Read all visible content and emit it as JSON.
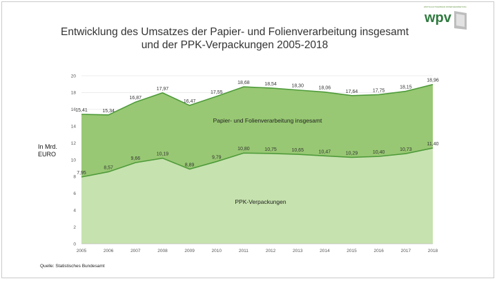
{
  "logo": {
    "text": "wpv",
    "tagline": "WIRTSCHAFTSVERBAND PAPIERVERARBEITUNG",
    "icon": "wpv-logo-icon"
  },
  "chart_data": {
    "type": "area",
    "title": "Entwicklung des Umsatzes der Papier- und Folienverarbeitung insgesamt",
    "subtitle": "und der PPK-Verpackungen 2005-2018",
    "ylabel_line1": "In Mrd.",
    "ylabel_line2": "EURO",
    "source": "Quelle: Statistisches Bundesamt",
    "x": [
      "2005",
      "2006",
      "2007",
      "2008",
      "2009",
      "2010",
      "2011",
      "2012",
      "2013",
      "2014",
      "2015",
      "2016",
      "2017",
      "2018"
    ],
    "ylim": [
      0,
      20
    ],
    "yticks": [
      "0",
      "2",
      "4",
      "6",
      "8",
      "10",
      "12",
      "14",
      "16",
      "18",
      "20"
    ],
    "grid": true,
    "series": [
      {
        "name": "Papier- und Folienverarbeitung insgesamt",
        "values": [
          15.41,
          15.34,
          16.87,
          17.97,
          16.47,
          17.55,
          18.68,
          18.54,
          18.3,
          18.06,
          17.64,
          17.75,
          18.15,
          18.96
        ],
        "labels": [
          "15,41",
          "15,34",
          "16,87",
          "17,97",
          "16,47",
          "17,55",
          "18,68",
          "18,54",
          "18,30",
          "18,06",
          "17,64",
          "17,75",
          "18,15",
          "18,96"
        ],
        "fill": "#98c873",
        "line": "#4e9a3a"
      },
      {
        "name": "PPK-Verpackungen",
        "values": [
          7.95,
          8.57,
          9.66,
          10.19,
          8.89,
          9.79,
          10.8,
          10.75,
          10.65,
          10.47,
          10.29,
          10.4,
          10.73,
          11.4
        ],
        "labels": [
          "7,95",
          "8,57",
          "9,66",
          "10,19",
          "8,89",
          "9,79",
          "10,80",
          "10,75",
          "10,65",
          "10,47",
          "10,29",
          "10,40",
          "10,73",
          "11,40"
        ],
        "fill": "#c6e2ae",
        "line": "#4e9a3a"
      }
    ]
  }
}
